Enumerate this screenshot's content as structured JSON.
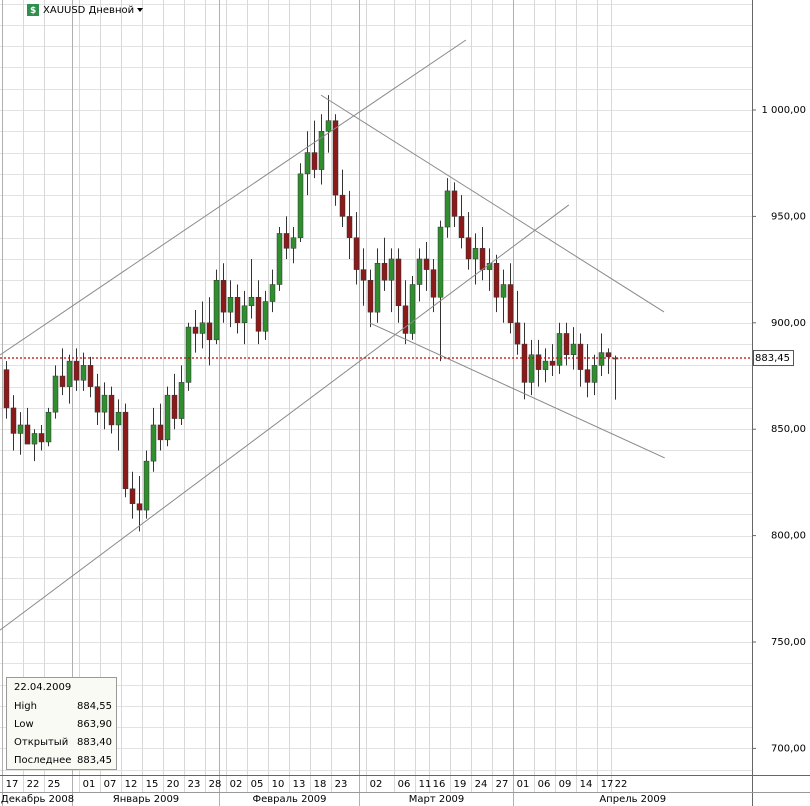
{
  "header": {
    "title": "XAUUSD Дневной"
  },
  "info": {
    "date": "22.04.2009",
    "rows": [
      [
        "High",
        "884,55"
      ],
      [
        "Low",
        "863,90"
      ],
      [
        "Открытый",
        "883,40"
      ],
      [
        "Последнее",
        "883,45"
      ]
    ]
  },
  "chart_data": {
    "type": "candlestick",
    "up_color": "#2f8f2f",
    "down_color": "#8b1a1a",
    "ylim": [
      687.5,
      1051.7
    ],
    "yticks": [
      {
        "value": 700,
        "label": "700,00"
      },
      {
        "value": 750,
        "label": "750,00"
      },
      {
        "value": 800,
        "label": "800,00"
      },
      {
        "value": 850,
        "label": "850,00"
      },
      {
        "value": 900,
        "label": "900,00"
      },
      {
        "value": 950,
        "label": "950,00"
      },
      {
        "value": 1000,
        "label": "1 000,00"
      }
    ],
    "yminorticks": [
      690,
      700,
      710,
      720,
      730,
      740,
      750,
      760,
      770,
      780,
      790,
      800,
      810,
      820,
      830,
      840,
      850,
      860,
      870,
      880,
      890,
      900,
      910,
      920,
      930,
      940,
      950,
      960,
      970,
      980,
      990,
      1000,
      1010,
      1020,
      1030,
      1040,
      1050
    ],
    "grid": true,
    "last_price": {
      "value": 883.45,
      "label": "883,45",
      "color": "#cc0000"
    },
    "categories": [
      "17",
      null,
      null,
      "22",
      null,
      null,
      "25",
      null,
      null,
      null,
      null,
      "01",
      null,
      null,
      "07",
      null,
      null,
      "12",
      null,
      null,
      "15",
      null,
      null,
      "20",
      null,
      null,
      "23",
      null,
      null,
      "28",
      null,
      null,
      "02",
      null,
      null,
      "05",
      null,
      null,
      "10",
      null,
      null,
      "13",
      null,
      null,
      "18",
      null,
      null,
      "23",
      null,
      null,
      null,
      null,
      "02",
      null,
      null,
      null,
      "06",
      null,
      null,
      "11",
      null,
      "16",
      null,
      null,
      "19",
      null,
      null,
      "24",
      null,
      null,
      "27",
      null,
      null,
      "01",
      null,
      null,
      "06",
      null,
      null,
      "09",
      null,
      null,
      "14",
      null,
      null,
      "17",
      null,
      "22"
    ],
    "months": [
      "Декабрь 2008",
      null,
      null,
      null,
      null,
      null,
      null,
      null,
      null,
      null,
      "Январь 2009",
      null,
      null,
      null,
      null,
      null,
      null,
      null,
      null,
      null,
      null,
      null,
      null,
      null,
      null,
      null,
      null,
      null,
      null,
      null,
      null,
      "Февраль 2009",
      null,
      null,
      null,
      null,
      null,
      null,
      null,
      null,
      null,
      null,
      null,
      null,
      null,
      null,
      null,
      null,
      null,
      null,
      null,
      "Март 2009",
      null,
      null,
      null,
      null,
      null,
      null,
      null,
      null,
      null,
      null,
      null,
      null,
      null,
      null,
      null,
      null,
      null,
      null,
      null,
      null,
      null,
      "Апрель 2009",
      null,
      null,
      null,
      null,
      null,
      null,
      null,
      null,
      null,
      null,
      null,
      null,
      null,
      null
    ],
    "open": [
      878,
      860,
      848,
      852,
      843,
      848,
      844,
      858,
      875,
      870,
      882,
      873,
      880,
      870,
      858,
      866,
      852,
      858,
      822,
      815,
      812,
      835,
      852,
      845,
      866,
      855,
      872,
      898,
      895,
      900,
      892,
      920,
      905,
      912,
      900,
      908,
      912,
      896,
      910,
      918,
      942,
      935,
      940,
      970,
      980,
      972,
      990,
      995,
      960,
      950,
      940,
      925,
      920,
      905,
      928,
      920,
      930,
      908,
      895,
      918,
      930,
      925,
      912,
      945,
      962,
      950,
      940,
      930,
      935,
      925,
      928,
      912,
      918,
      900,
      890,
      872,
      885,
      878,
      882,
      880,
      895,
      885,
      890,
      878,
      872,
      880,
      886,
      883.4
    ],
    "high": [
      882,
      866,
      858,
      860,
      850,
      852,
      860,
      880,
      888,
      885,
      888,
      886,
      884,
      876,
      872,
      870,
      864,
      862,
      830,
      828,
      840,
      860,
      862,
      870,
      876,
      880,
      900,
      906,
      910,
      912,
      925,
      928,
      920,
      918,
      915,
      930,
      920,
      915,
      925,
      945,
      950,
      945,
      975,
      990,
      995,
      998,
      1007,
      998,
      972,
      962,
      952,
      935,
      925,
      935,
      940,
      935,
      935,
      920,
      922,
      935,
      938,
      930,
      948,
      968,
      966,
      960,
      952,
      942,
      945,
      935,
      932,
      925,
      928,
      915,
      900,
      892,
      892,
      888,
      890,
      900,
      900,
      898,
      895,
      890,
      885,
      895,
      888,
      884.55
    ],
    "low": [
      855,
      840,
      838,
      845,
      835,
      840,
      842,
      855,
      866,
      862,
      868,
      868,
      865,
      852,
      850,
      848,
      840,
      818,
      808,
      802,
      808,
      830,
      840,
      842,
      850,
      852,
      868,
      886,
      888,
      880,
      890,
      900,
      898,
      895,
      890,
      902,
      890,
      892,
      905,
      915,
      930,
      928,
      938,
      960,
      968,
      965,
      980,
      955,
      945,
      930,
      918,
      908,
      898,
      900,
      915,
      905,
      900,
      890,
      892,
      910,
      915,
      905,
      882,
      940,
      945,
      935,
      925,
      918,
      920,
      915,
      905,
      900,
      895,
      885,
      864,
      866,
      870,
      872,
      875,
      876,
      880,
      878,
      870,
      865,
      866,
      875,
      876,
      863.9
    ],
    "close": [
      860,
      848,
      852,
      843,
      848,
      844,
      858,
      875,
      870,
      882,
      873,
      880,
      870,
      858,
      866,
      852,
      858,
      822,
      815,
      812,
      835,
      852,
      845,
      866,
      855,
      872,
      898,
      895,
      900,
      892,
      920,
      905,
      912,
      900,
      908,
      912,
      896,
      910,
      918,
      942,
      935,
      940,
      970,
      980,
      972,
      990,
      995,
      960,
      950,
      940,
      925,
      920,
      905,
      928,
      920,
      930,
      908,
      895,
      918,
      930,
      925,
      912,
      945,
      962,
      950,
      940,
      930,
      935,
      925,
      928,
      912,
      918,
      900,
      890,
      872,
      885,
      878,
      882,
      880,
      895,
      885,
      890,
      878,
      872,
      880,
      886,
      884,
      883.45
    ],
    "trendlines": [
      {
        "x": [
          -0.86,
          65.7
        ],
        "y": [
          884.9,
          1032.9
        ]
      },
      {
        "x": [
          -0.86,
          80.4
        ],
        "y": [
          755.6,
          955.4
        ]
      },
      {
        "x": [
          45,
          94
        ],
        "y": [
          1007,
          905.1
        ]
      },
      {
        "x": [
          52,
          94.1
        ],
        "y": [
          899.9,
          836.5
        ]
      }
    ]
  }
}
